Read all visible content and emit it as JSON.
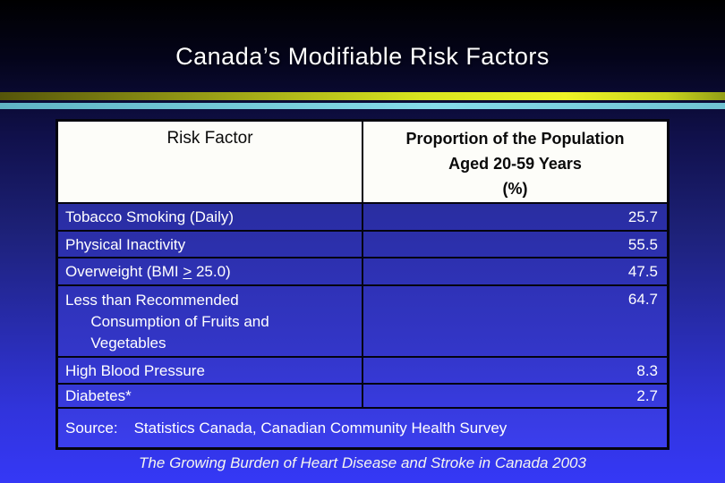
{
  "slide": {
    "title": "Canada’s Modifiable Risk Factors",
    "footer": "The Growing Burden of Heart Disease and Stroke in Canada 2003"
  },
  "table": {
    "headers": {
      "risk_factor": "Risk Factor",
      "proportion": "Proportion of the Population\nAged 20-59 Years\n(%)"
    },
    "rows": [
      {
        "label": "Tobacco Smoking (Daily)",
        "value": "25.7"
      },
      {
        "label": "Physical Inactivity",
        "value": "55.5"
      },
      {
        "label_pre": "Overweight (BMI ",
        "label_symbol": ">",
        "label_post": " 25.0)",
        "value": "47.5"
      },
      {
        "label": "Less than Recommended\n      Consumption of Fruits and\n      Vegetables",
        "value": "64.7"
      },
      {
        "label": "High Blood Pressure",
        "value": "8.3"
      },
      {
        "label": "Diabetes*",
        "value": "2.7"
      }
    ],
    "source": {
      "label": "Source:",
      "text": "Statistics Canada, Canadian Community Health Survey"
    }
  },
  "colors": {
    "accent_yellow": "#e8ef25",
    "accent_teal": "#74c8d8",
    "row_blue_top": "#292da0",
    "row_blue_bottom": "#3b3eee",
    "header_bg": "#fdfdf9",
    "border": "#04040f"
  }
}
